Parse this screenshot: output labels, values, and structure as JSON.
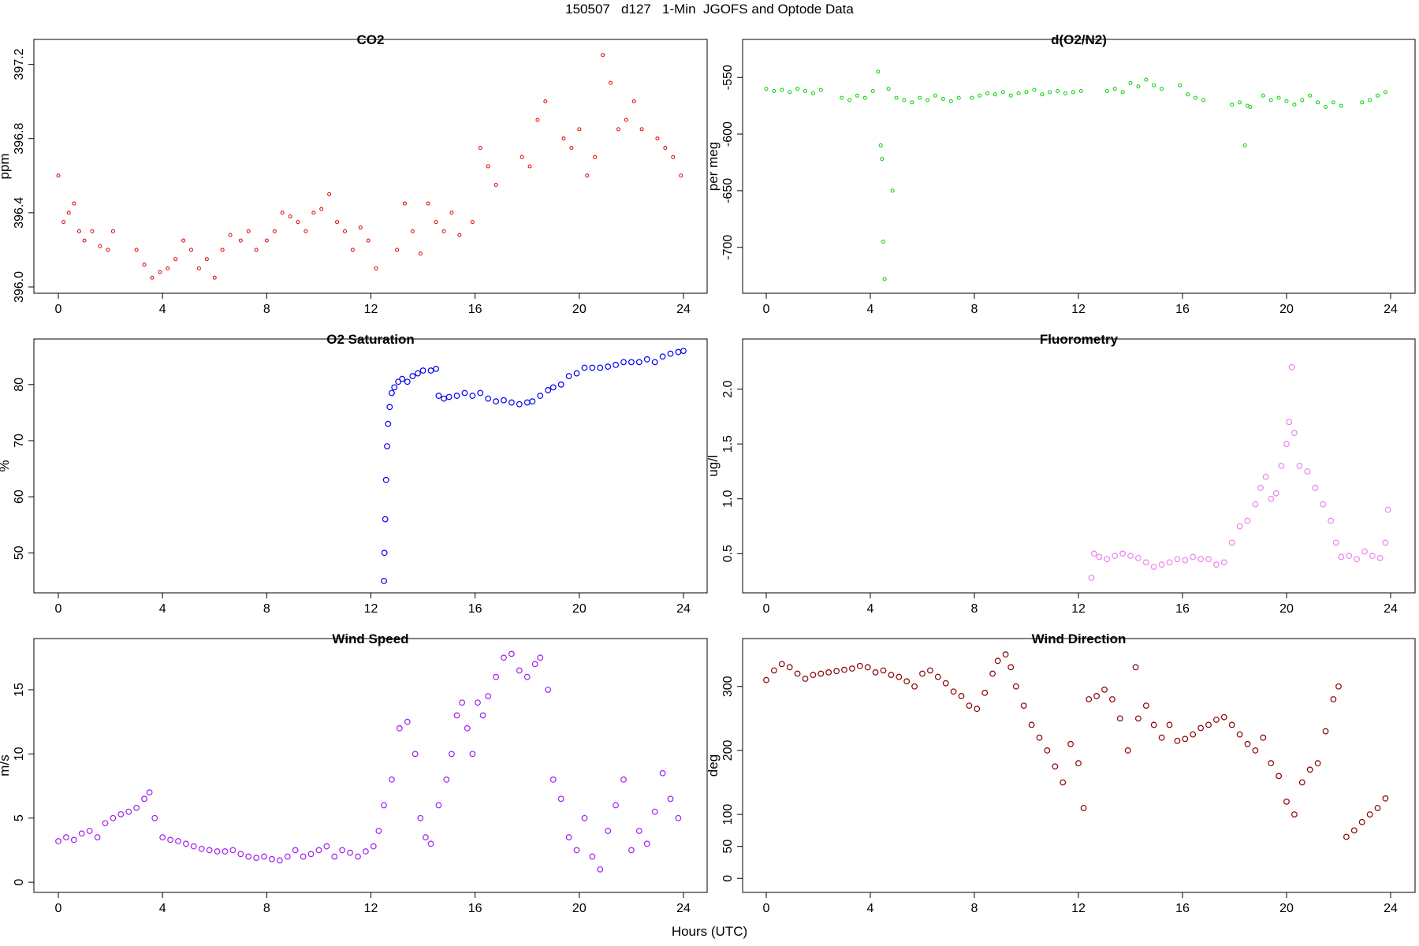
{
  "figure": {
    "title": "150507   d127   1-Min  JGOFS and Optode Data",
    "xlabel": "Hours (UTC)"
  },
  "chart_data": [
    {
      "type": "scatter",
      "title": "CO2",
      "ylabel": "ppm",
      "color": "#e00000",
      "marker": "small-open-circle",
      "xlim": [
        0,
        24
      ],
      "ylim": [
        396.0,
        397.3
      ],
      "xticks": [
        0,
        4,
        8,
        12,
        16,
        20,
        24
      ],
      "yticks": [
        396.0,
        396.4,
        396.8,
        397.2
      ],
      "ytick_labels": [
        "396.0",
        "396.4",
        "396.8",
        "397.2"
      ],
      "x": [
        0.0,
        0.2,
        0.4,
        0.6,
        0.8,
        1.0,
        1.3,
        1.6,
        1.9,
        2.1,
        3.0,
        3.3,
        3.6,
        3.9,
        4.2,
        4.5,
        4.8,
        5.1,
        5.4,
        5.7,
        6.0,
        6.3,
        6.6,
        7.0,
        7.3,
        7.6,
        8.0,
        8.3,
        8.6,
        8.9,
        9.2,
        9.5,
        9.8,
        10.1,
        10.4,
        10.7,
        11.0,
        11.3,
        11.6,
        11.9,
        12.2,
        13.0,
        13.3,
        13.6,
        13.9,
        14.2,
        14.5,
        14.8,
        15.1,
        15.4,
        15.9,
        16.2,
        16.5,
        16.8,
        17.8,
        18.1,
        18.4,
        18.7,
        19.4,
        19.7,
        20.0,
        20.3,
        20.6,
        20.9,
        21.2,
        21.5,
        21.8,
        22.1,
        22.4,
        23.0,
        23.3,
        23.6,
        23.9
      ],
      "y": [
        396.6,
        396.35,
        396.4,
        396.45,
        396.3,
        396.25,
        396.3,
        396.22,
        396.2,
        396.3,
        396.2,
        396.12,
        396.05,
        396.08,
        396.1,
        396.15,
        396.25,
        396.2,
        396.1,
        396.15,
        396.05,
        396.2,
        396.28,
        396.25,
        396.3,
        396.2,
        396.25,
        396.3,
        396.4,
        396.38,
        396.35,
        396.3,
        396.4,
        396.42,
        396.5,
        396.35,
        396.3,
        396.2,
        396.32,
        396.25,
        396.1,
        396.2,
        396.45,
        396.3,
        396.18,
        396.45,
        396.35,
        396.3,
        396.4,
        396.28,
        396.35,
        396.75,
        396.65,
        396.55,
        396.7,
        396.65,
        396.9,
        397.0,
        396.8,
        396.75,
        396.85,
        396.6,
        396.7,
        397.25,
        397.1,
        396.85,
        396.9,
        397.0,
        396.85,
        396.8,
        396.75,
        396.7,
        396.6
      ]
    },
    {
      "type": "scatter",
      "title": "d(O2/N2)",
      "ylabel": "per meg",
      "color": "#00d000",
      "marker": "small-open-circle",
      "xlim": [
        0,
        24
      ],
      "ylim": [
        -735,
        -522
      ],
      "xticks": [
        0,
        4,
        8,
        12,
        16,
        20,
        24
      ],
      "yticks": [
        -700,
        -650,
        -600,
        -550
      ],
      "ytick_labels": [
        "-700",
        "-650",
        "-600",
        "-550"
      ],
      "x": [
        0.0,
        0.3,
        0.6,
        0.9,
        1.2,
        1.5,
        1.8,
        2.1,
        2.9,
        3.2,
        3.5,
        3.8,
        4.1,
        4.3,
        4.4,
        4.45,
        4.5,
        4.55,
        4.7,
        4.85,
        5.0,
        5.3,
        5.6,
        5.9,
        6.2,
        6.5,
        6.8,
        7.1,
        7.4,
        7.9,
        8.2,
        8.5,
        8.8,
        9.1,
        9.4,
        9.7,
        10.0,
        10.3,
        10.6,
        10.9,
        11.2,
        11.5,
        11.8,
        12.1,
        13.1,
        13.4,
        13.7,
        14.0,
        14.3,
        14.6,
        14.9,
        15.2,
        15.9,
        16.2,
        16.5,
        16.8,
        17.9,
        18.2,
        18.4,
        18.5,
        18.6,
        19.1,
        19.4,
        19.7,
        20.0,
        20.3,
        20.6,
        20.9,
        21.2,
        21.5,
        21.8,
        22.1,
        22.9,
        23.2,
        23.5,
        23.8
      ],
      "y": [
        -560,
        -562,
        -561,
        -563,
        -560,
        -562,
        -564,
        -561,
        -568,
        -570,
        -566,
        -568,
        -562,
        -545,
        -610,
        -622,
        -695,
        -728,
        -560,
        -650,
        -568,
        -570,
        -572,
        -568,
        -570,
        -566,
        -569,
        -571,
        -568,
        -568,
        -566,
        -564,
        -565,
        -563,
        -566,
        -564,
        -563,
        -561,
        -565,
        -563,
        -562,
        -564,
        -563,
        -562,
        -562,
        -560,
        -563,
        -555,
        -558,
        -552,
        -557,
        -560,
        -557,
        -565,
        -568,
        -570,
        -574,
        -572,
        -610,
        -575,
        -576,
        -566,
        -570,
        -568,
        -571,
        -574,
        -570,
        -566,
        -572,
        -576,
        -572,
        -575,
        -572,
        -570,
        -566,
        -563
      ]
    },
    {
      "type": "scatter",
      "title": "O2 Saturation",
      "ylabel": "%",
      "color": "#0000ee",
      "marker": "open-circle",
      "xlim": [
        0,
        24
      ],
      "ylim": [
        44,
        87
      ],
      "xticks": [
        0,
        4,
        8,
        12,
        16,
        20,
        24
      ],
      "yticks": [
        50,
        60,
        70,
        80
      ],
      "ytick_labels": [
        "50",
        "60",
        "70",
        "80"
      ],
      "x": [
        12.5,
        12.52,
        12.55,
        12.58,
        12.62,
        12.66,
        12.72,
        12.8,
        12.9,
        13.05,
        13.2,
        13.4,
        13.6,
        13.8,
        14.0,
        14.3,
        14.5,
        14.6,
        14.8,
        15.0,
        15.3,
        15.6,
        15.9,
        16.2,
        16.5,
        16.8,
        17.1,
        17.4,
        17.7,
        18.0,
        18.2,
        18.5,
        18.8,
        19.0,
        19.3,
        19.6,
        19.9,
        20.2,
        20.5,
        20.8,
        21.1,
        21.4,
        21.7,
        22.0,
        22.3,
        22.6,
        22.9,
        23.2,
        23.5,
        23.8,
        24.0
      ],
      "y": [
        45,
        50,
        56,
        63,
        69,
        73,
        76,
        78.5,
        79.5,
        80.5,
        81,
        80.5,
        81.5,
        82,
        82.5,
        82.5,
        82.8,
        78,
        77.5,
        77.8,
        78,
        78.5,
        78,
        78.5,
        77.5,
        77,
        77.2,
        76.8,
        76.5,
        76.8,
        77,
        78,
        79,
        79.5,
        80,
        81.5,
        82,
        83,
        83,
        83,
        83.2,
        83.5,
        84,
        84,
        84,
        84.5,
        84,
        85,
        85.5,
        85.8,
        86
      ]
    },
    {
      "type": "scatter",
      "title": "Fluorometry",
      "ylabel": "ug/l",
      "color": "#ee82ee",
      "marker": "open-circle",
      "xlim": [
        0,
        24
      ],
      "ylim": [
        0.2,
        2.4
      ],
      "xticks": [
        0,
        4,
        8,
        12,
        16,
        20,
        24
      ],
      "yticks": [
        0.5,
        1.0,
        1.5,
        2.0
      ],
      "ytick_labels": [
        "0.5",
        "1.0",
        "1.5",
        "2.0"
      ],
      "x": [
        12.5,
        12.6,
        12.8,
        13.1,
        13.4,
        13.7,
        14.0,
        14.3,
        14.6,
        14.9,
        15.2,
        15.5,
        15.8,
        16.1,
        16.4,
        16.7,
        17.0,
        17.3,
        17.6,
        17.9,
        18.2,
        18.5,
        18.8,
        19.0,
        19.2,
        19.4,
        19.6,
        19.8,
        20.0,
        20.1,
        20.2,
        20.3,
        20.5,
        20.8,
        21.1,
        21.4,
        21.7,
        21.9,
        22.1,
        22.4,
        22.7,
        23.0,
        23.3,
        23.6,
        23.8,
        23.9
      ],
      "y": [
        0.28,
        0.5,
        0.47,
        0.45,
        0.48,
        0.5,
        0.48,
        0.46,
        0.42,
        0.38,
        0.4,
        0.42,
        0.45,
        0.44,
        0.47,
        0.45,
        0.45,
        0.4,
        0.42,
        0.6,
        0.75,
        0.8,
        0.95,
        1.1,
        1.2,
        1.0,
        1.05,
        1.3,
        1.5,
        1.7,
        2.2,
        1.6,
        1.3,
        1.25,
        1.1,
        0.95,
        0.8,
        0.6,
        0.47,
        0.48,
        0.45,
        0.52,
        0.48,
        0.46,
        0.6,
        0.9
      ]
    },
    {
      "type": "scatter",
      "title": "Wind Speed",
      "ylabel": "m/s",
      "color": "#a020f0",
      "marker": "open-circle",
      "xlim": [
        0,
        24
      ],
      "ylim": [
        -0.3,
        18.5
      ],
      "xticks": [
        0,
        4,
        8,
        12,
        16,
        20,
        24
      ],
      "yticks": [
        0,
        5,
        10,
        15
      ],
      "ytick_labels": [
        "0",
        "5",
        "10",
        "15"
      ],
      "x": [
        0.0,
        0.3,
        0.6,
        0.9,
        1.2,
        1.5,
        1.8,
        2.1,
        2.4,
        2.7,
        3.0,
        3.3,
        3.5,
        3.7,
        4.0,
        4.3,
        4.6,
        4.9,
        5.2,
        5.5,
        5.8,
        6.1,
        6.4,
        6.7,
        7.0,
        7.3,
        7.6,
        7.9,
        8.2,
        8.5,
        8.8,
        9.1,
        9.4,
        9.7,
        10.0,
        10.3,
        10.6,
        10.9,
        11.2,
        11.5,
        11.8,
        12.1,
        12.3,
        12.5,
        12.8,
        13.1,
        13.4,
        13.7,
        13.9,
        14.1,
        14.3,
        14.6,
        14.9,
        15.1,
        15.3,
        15.5,
        15.7,
        15.9,
        16.1,
        16.3,
        16.5,
        16.8,
        17.1,
        17.4,
        17.7,
        18.0,
        18.3,
        18.5,
        18.8,
        19.0,
        19.3,
        19.6,
        19.9,
        20.2,
        20.5,
        20.8,
        21.1,
        21.4,
        21.7,
        22.0,
        22.3,
        22.6,
        22.9,
        23.2,
        23.5,
        23.8
      ],
      "y": [
        3.2,
        3.5,
        3.3,
        3.8,
        4.0,
        3.5,
        4.6,
        5.0,
        5.3,
        5.5,
        5.8,
        6.5,
        7.0,
        5.0,
        3.5,
        3.3,
        3.2,
        3.0,
        2.8,
        2.6,
        2.5,
        2.4,
        2.4,
        2.5,
        2.2,
        2.0,
        1.9,
        2.0,
        1.8,
        1.7,
        2.0,
        2.5,
        2.0,
        2.2,
        2.5,
        2.8,
        2.0,
        2.5,
        2.3,
        2.0,
        2.4,
        2.8,
        4.0,
        6.0,
        8.0,
        12.0,
        12.5,
        10.0,
        5.0,
        3.5,
        3.0,
        6.0,
        8.0,
        10.0,
        13.0,
        14.0,
        12.0,
        10.0,
        14.0,
        13.0,
        14.5,
        16.0,
        17.5,
        17.8,
        16.5,
        16.0,
        17.0,
        17.5,
        15.0,
        8.0,
        6.5,
        3.5,
        2.5,
        5.0,
        2.0,
        1.0,
        4.0,
        6.0,
        8.0,
        2.5,
        4.0,
        3.0,
        5.5,
        8.5,
        6.5,
        5.0
      ]
    },
    {
      "type": "scatter",
      "title": "Wind Direction",
      "ylabel": "deg",
      "color": "#8b0000",
      "marker": "open-circle",
      "xlim": [
        0,
        24
      ],
      "ylim": [
        -12,
        365
      ],
      "xticks": [
        0,
        4,
        8,
        12,
        16,
        20,
        24
      ],
      "yticks": [
        0,
        50,
        100,
        200,
        300
      ],
      "ytick_labels": [
        "0",
        "50",
        "100",
        "200",
        "300"
      ],
      "x": [
        0.0,
        0.3,
        0.6,
        0.9,
        1.2,
        1.5,
        1.8,
        2.1,
        2.4,
        2.7,
        3.0,
        3.3,
        3.6,
        3.9,
        4.2,
        4.5,
        4.8,
        5.1,
        5.4,
        5.7,
        6.0,
        6.3,
        6.6,
        6.9,
        7.2,
        7.5,
        7.8,
        8.1,
        8.4,
        8.7,
        8.9,
        9.2,
        9.4,
        9.6,
        9.9,
        10.2,
        10.5,
        10.8,
        11.1,
        11.4,
        11.7,
        12.0,
        12.2,
        12.4,
        12.7,
        13.0,
        13.3,
        13.6,
        13.9,
        14.2,
        14.3,
        14.6,
        14.9,
        15.2,
        15.5,
        15.8,
        16.1,
        16.4,
        16.7,
        17.0,
        17.3,
        17.6,
        17.9,
        18.2,
        18.5,
        18.8,
        19.1,
        19.4,
        19.7,
        20.0,
        20.3,
        20.6,
        20.9,
        21.2,
        21.5,
        21.8,
        22.0,
        22.3,
        22.6,
        22.9,
        23.2,
        23.5,
        23.8
      ],
      "y": [
        310,
        325,
        335,
        330,
        320,
        312,
        318,
        320,
        322,
        324,
        326,
        328,
        332,
        330,
        322,
        325,
        318,
        315,
        308,
        300,
        320,
        325,
        315,
        305,
        292,
        285,
        270,
        265,
        290,
        320,
        340,
        350,
        330,
        300,
        270,
        240,
        220,
        200,
        175,
        150,
        210,
        180,
        110,
        280,
        285,
        295,
        280,
        250,
        200,
        330,
        250,
        270,
        240,
        220,
        240,
        215,
        218,
        225,
        235,
        240,
        248,
        252,
        240,
        225,
        210,
        200,
        220,
        180,
        160,
        120,
        100,
        150,
        170,
        180,
        230,
        280,
        300,
        65,
        75,
        88,
        100,
        110,
        125
      ]
    }
  ]
}
